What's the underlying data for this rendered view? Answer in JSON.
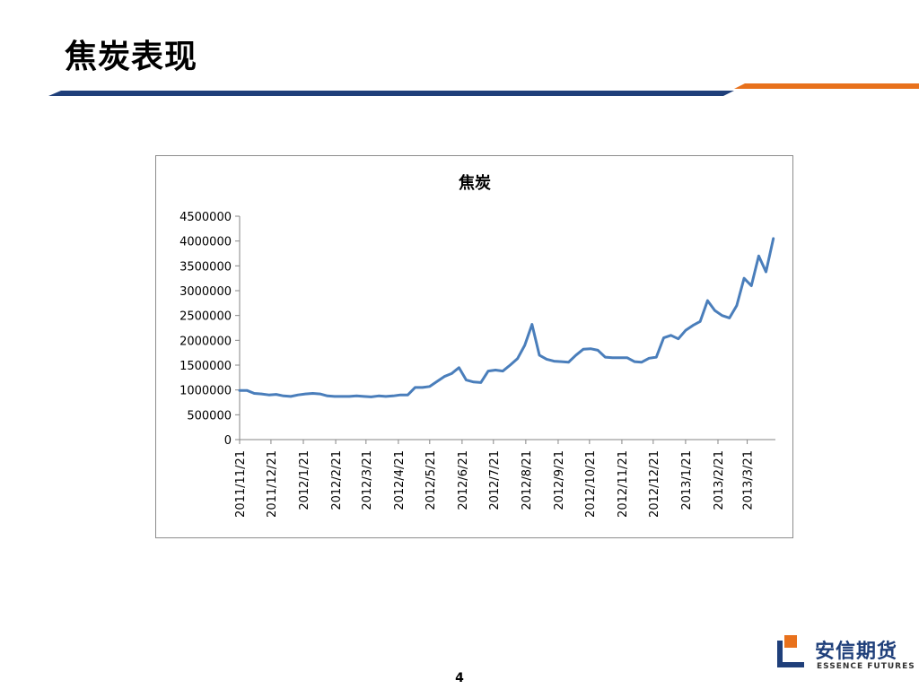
{
  "slide": {
    "title": "焦炭表现",
    "page_number": "4"
  },
  "logo": {
    "name_cn": "安信期货",
    "name_en": "ESSENCE FUTURES"
  },
  "colors": {
    "header_bar_navy": "#1f3f7a",
    "header_bar_orange": "#e8711c",
    "series_line": "#4a7ebb",
    "logo_orange": "#e8711c",
    "logo_navy": "#1f3f7a"
  },
  "chart_data": {
    "type": "line",
    "title": "焦炭",
    "xlabel": "",
    "ylabel": "",
    "ylim": [
      0,
      4500000
    ],
    "yticks": [
      0,
      500000,
      1000000,
      1500000,
      2000000,
      2500000,
      3000000,
      3500000,
      4000000,
      4500000
    ],
    "ytick_labels": [
      "0",
      "500000",
      "1000000",
      "1500000",
      "2000000",
      "2500000",
      "3000000",
      "3500000",
      "4000000",
      "4500000"
    ],
    "x_start": "2011/11/21",
    "x_end": "2013/4/17",
    "xtick_labels": [
      "2011/11/21",
      "2011/12/21",
      "2012/1/21",
      "2012/2/21",
      "2012/3/21",
      "2012/4/21",
      "2012/5/21",
      "2012/6/21",
      "2012/7/21",
      "2012/8/21",
      "2012/9/21",
      "2012/10/21",
      "2012/11/21",
      "2012/12/21",
      "2013/1/21",
      "2013/2/21",
      "2013/3/21"
    ],
    "grid": false,
    "legend": "none",
    "series": [
      {
        "name": "",
        "x": [
          "2011/11/21",
          "2011/11/28",
          "2011/12/5",
          "2011/12/12",
          "2011/12/19",
          "2011/12/26",
          "2012/1/2",
          "2012/1/9",
          "2012/1/16",
          "2012/1/23",
          "2012/1/30",
          "2012/2/6",
          "2012/2/13",
          "2012/2/20",
          "2012/2/27",
          "2012/3/5",
          "2012/3/12",
          "2012/3/19",
          "2012/3/26",
          "2012/4/2",
          "2012/4/9",
          "2012/4/16",
          "2012/4/23",
          "2012/4/30",
          "2012/5/7",
          "2012/5/14",
          "2012/5/21",
          "2012/5/28",
          "2012/6/4",
          "2012/6/11",
          "2012/6/18",
          "2012/6/25",
          "2012/7/2",
          "2012/7/9",
          "2012/7/16",
          "2012/7/23",
          "2012/7/30",
          "2012/8/6",
          "2012/8/13",
          "2012/8/20",
          "2012/8/27",
          "2012/9/3",
          "2012/9/10",
          "2012/9/17",
          "2012/9/24",
          "2012/10/1",
          "2012/10/8",
          "2012/10/15",
          "2012/10/22",
          "2012/10/29",
          "2012/11/5",
          "2012/11/12",
          "2012/11/19",
          "2012/11/26",
          "2012/12/3",
          "2012/12/10",
          "2012/12/17",
          "2012/12/24",
          "2012/12/31",
          "2013/1/7",
          "2013/1/14",
          "2013/1/21",
          "2013/1/28",
          "2013/2/4",
          "2013/2/11",
          "2013/2/18",
          "2013/2/25",
          "2013/3/4",
          "2013/3/11",
          "2013/3/18",
          "2013/3/25",
          "2013/4/1",
          "2013/4/8",
          "2013/4/15"
        ],
        "values": [
          990000,
          990000,
          930000,
          920000,
          900000,
          910000,
          880000,
          870000,
          900000,
          920000,
          930000,
          920000,
          880000,
          870000,
          870000,
          870000,
          880000,
          870000,
          860000,
          880000,
          870000,
          880000,
          900000,
          900000,
          1050000,
          1050000,
          1070000,
          1170000,
          1270000,
          1330000,
          1450000,
          1200000,
          1160000,
          1150000,
          1380000,
          1400000,
          1380000,
          1500000,
          1630000,
          1900000,
          2320000,
          1700000,
          1620000,
          1580000,
          1570000,
          1560000,
          1700000,
          1820000,
          1830000,
          1800000,
          1660000,
          1650000,
          1650000,
          1650000,
          1570000,
          1560000,
          1640000,
          1660000,
          2050000,
          2100000,
          2030000,
          2200000,
          2300000,
          2380000,
          2800000,
          2600000,
          2500000,
          2450000,
          2700000,
          3250000,
          3100000,
          3700000,
          3380000,
          4050000
        ]
      }
    ]
  }
}
